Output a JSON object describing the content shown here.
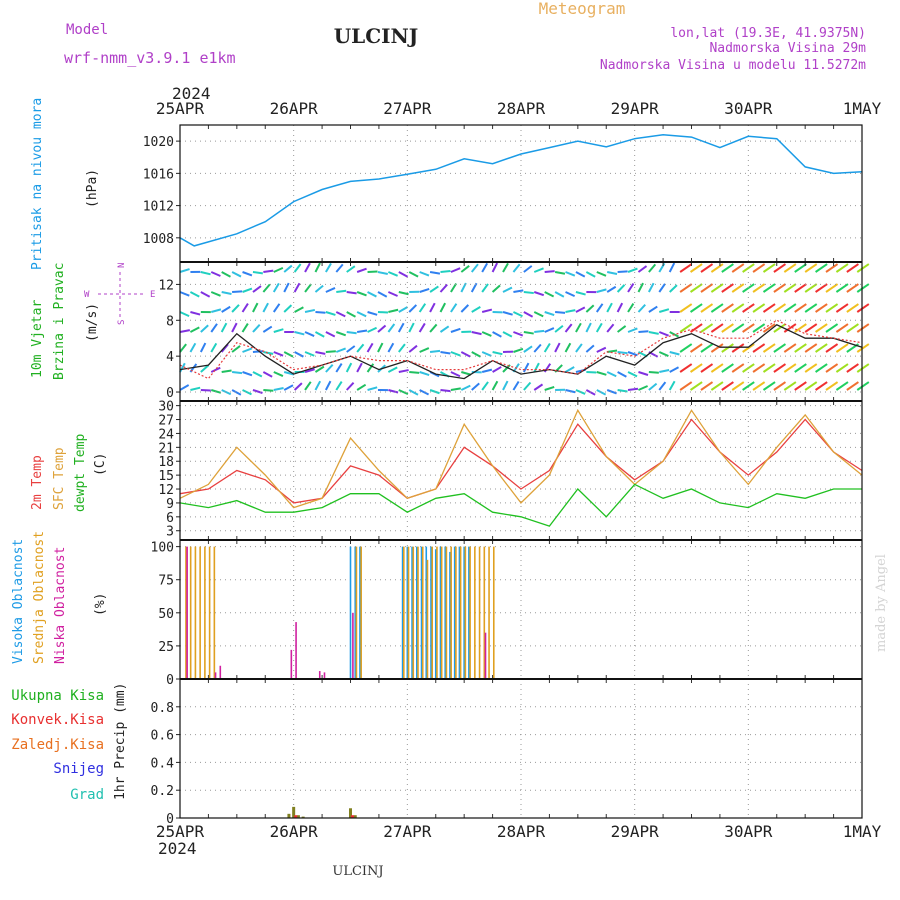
{
  "header": {
    "model_label": "Model",
    "model_name": "wrf-nmm_v3.9.1 e1km",
    "station": "ULCINJ",
    "meteogram": "Meteogram",
    "lonlat": "lon,lat (19.3E, 41.9375N)",
    "altitude": "Nadmorska Visina 29m",
    "model_altitude": "Nadmorska Visina u modelu 11.5272m",
    "year_top": "2024",
    "year_bottom": "2024",
    "footer_station": "ULCINJ",
    "credit": "made by Angel"
  },
  "dates": [
    "25APR",
    "26APR",
    "27APR",
    "28APR",
    "29APR",
    "30APR",
    "1MAY"
  ],
  "panels": {
    "pressure": {
      "label": "Pritisak na nivou mora",
      "unit": "(hPa)",
      "ticks": [
        "1008",
        "1012",
        "1016",
        "1020"
      ]
    },
    "wind": {
      "label1": "10m Vjetar",
      "label2": "Brzina i Pravac",
      "unit": "(m/s)",
      "ticks": [
        "0",
        "4",
        "8",
        "12"
      ],
      "compass": {
        "north": "N",
        "west": "W",
        "east": "E",
        "south": "S"
      }
    },
    "temp": {
      "label_2m": "2m Temp",
      "label_sfc": "SFC Temp",
      "label_dew": "dewpt Temp",
      "unit": "(C)",
      "ticks": [
        "3",
        "6",
        "9",
        "12",
        "15",
        "18",
        "21",
        "24",
        "27",
        "30"
      ]
    },
    "cloud": {
      "label_high": "Visoka Oblacnost",
      "label_mid": "Srednja Oblacnost",
      "label_low": "Niska Oblacnost",
      "unit": "(%)",
      "ticks": [
        "0",
        "25",
        "50",
        "75",
        "100"
      ]
    },
    "precip": {
      "label_total": "Ukupna Kisa",
      "label_conv": "Konvek.Kisa",
      "label_frozen": "Zaledj.Kisa",
      "label_snow": "Snijeg",
      "label_hail": "Grad",
      "unit": "1hr Precip (mm)",
      "ticks": [
        "0",
        "0.2",
        "0.4",
        "0.6",
        "0.8"
      ]
    }
  },
  "colors": {
    "pressure": "#1a9be6",
    "wind_speed": "#222222",
    "wind_gust": "#e63c3c",
    "t2m": "#e84040",
    "tsfc": "#dea23a",
    "dewpt": "#20c020",
    "cloud_high": "#1e9be6",
    "cloud_mid": "#e0a020",
    "cloud_low": "#d020a0",
    "precip_total": "#20b020",
    "precip_conv": "#e83030",
    "precip_frozen": "#e87020",
    "precip_snow": "#3030e0",
    "precip_hail": "#20c0b0"
  },
  "chart_data": [
    {
      "type": "line",
      "title": "Pritisak na nivou mora",
      "ylabel": "(hPa)",
      "ylim": [
        1005,
        1022
      ],
      "x_hours_from_25APR": [
        0,
        3,
        6,
        12,
        18,
        24,
        30,
        36,
        42,
        48,
        54,
        60,
        66,
        72,
        78,
        84,
        90,
        96,
        102,
        108,
        114,
        120,
        126,
        132,
        138,
        144
      ],
      "series": [
        {
          "values": [
            1008,
            1007,
            1007.5,
            1008.5,
            1010,
            1012.5,
            1014,
            1015,
            1015.3,
            1015.9,
            1016.5,
            1017.8,
            1017.2,
            1018.4,
            1019.2,
            1020,
            1019.3,
            1020.3,
            1020.8,
            1020.5,
            1019.2,
            1020.6,
            1020.3,
            1016.8,
            1016,
            1016.2
          ]
        }
      ]
    },
    {
      "type": "line",
      "title": "10m Vjetar Brzina i Pravac",
      "ylabel": "(m/s)",
      "ylim": [
        -1,
        14.5
      ],
      "x_hours_from_25APR": [
        0,
        6,
        12,
        18,
        24,
        30,
        36,
        42,
        48,
        54,
        60,
        66,
        72,
        78,
        84,
        90,
        96,
        102,
        108,
        114,
        120,
        126,
        132,
        138,
        144
      ],
      "series": [
        {
          "values": [
            2.5,
            3,
            6.5,
            4,
            2,
            3,
            4,
            2.5,
            3.5,
            2,
            1.5,
            3.5,
            2,
            2.5,
            2,
            4,
            3,
            5.5,
            6.5,
            5,
            5,
            7.5,
            6,
            6,
            5
          ]
        },
        {
          "values": [
            3,
            1.5,
            5.5,
            4.5,
            2.5,
            3,
            4,
            3.5,
            3.5,
            2.5,
            2.5,
            3.5,
            2.5,
            2.5,
            2,
            4.5,
            4,
            6,
            7,
            6,
            6,
            8,
            6.5,
            6,
            5.5
          ]
        }
      ]
    },
    {
      "type": "line",
      "title": "",
      "ylabel": "(C)",
      "ylim": [
        1,
        31
      ],
      "x_hours_from_25APR": [
        0,
        6,
        12,
        18,
        24,
        30,
        36,
        42,
        48,
        54,
        60,
        66,
        72,
        78,
        84,
        90,
        96,
        102,
        108,
        114,
        120,
        126,
        132,
        138,
        144
      ],
      "series": [
        {
          "name": "2m Temp",
          "values": [
            11,
            12,
            16,
            14,
            9,
            10,
            17,
            15,
            10,
            12,
            21,
            17,
            12,
            16,
            26,
            19,
            14,
            18,
            27,
            20,
            15,
            20,
            27,
            20,
            16
          ]
        },
        {
          "name": "SFC Temp",
          "values": [
            10,
            13,
            21,
            15,
            8,
            10,
            23,
            16,
            10,
            12,
            26,
            17,
            9,
            15,
            29,
            19,
            13,
            18,
            29,
            20,
            13,
            21,
            28,
            20,
            15
          ]
        },
        {
          "name": "dewpt Temp",
          "values": [
            9,
            8,
            9.5,
            7,
            7,
            8,
            11,
            11,
            7,
            10,
            11,
            7,
            6,
            4,
            12,
            6,
            13,
            10,
            12,
            9,
            8,
            11,
            10,
            12,
            12
          ]
        }
      ]
    },
    {
      "type": "bar",
      "title": "",
      "ylabel": "(%)",
      "ylim": [
        0,
        105
      ],
      "series": [
        {
          "name": "Visoka Oblacnost",
          "x_hours": [
            36,
            37,
            38,
            47,
            48,
            49,
            50,
            51,
            52,
            53,
            54,
            55,
            56,
            57,
            58,
            59,
            60,
            61
          ],
          "values": [
            100,
            100,
            100,
            100,
            100,
            100,
            100,
            100,
            100,
            100,
            98,
            100,
            100,
            96,
            100,
            100,
            100,
            100
          ]
        },
        {
          "name": "Srednja Oblacnost",
          "x_hours": [
            1,
            2,
            3,
            4,
            5,
            6,
            7,
            37,
            38,
            47,
            48,
            49,
            50,
            51,
            52,
            53,
            54,
            55,
            56,
            57,
            58,
            59,
            60,
            61,
            62,
            63,
            64,
            65,
            66
          ],
          "values": [
            100,
            100,
            100,
            100,
            100,
            100,
            100,
            100,
            100,
            100,
            100,
            100,
            100,
            100,
            90,
            100,
            100,
            100,
            100,
            100,
            100,
            100,
            100,
            100,
            100,
            100,
            100,
            100,
            100
          ]
        },
        {
          "name": "Niska Oblacnost",
          "x_hours": [
            1,
            7,
            8,
            23,
            24,
            29,
            30,
            36,
            64
          ],
          "values": [
            100,
            5,
            10,
            22,
            43,
            6,
            5,
            50,
            35
          ]
        }
      ]
    },
    {
      "type": "bar",
      "title": "",
      "ylabel": "1hr Precip (mm)",
      "ylim": [
        0,
        1.0
      ],
      "series": [
        {
          "name": "Ukupna Kisa",
          "x_hours": [
            23,
            24,
            25,
            26,
            36,
            37
          ],
          "values": [
            0.03,
            0.08,
            0.02,
            0.01,
            0.07,
            0.02
          ]
        },
        {
          "name": "Konvek.Kisa",
          "x_hours": [
            24,
            36
          ],
          "values": [
            0.02,
            0.02
          ]
        }
      ]
    }
  ]
}
